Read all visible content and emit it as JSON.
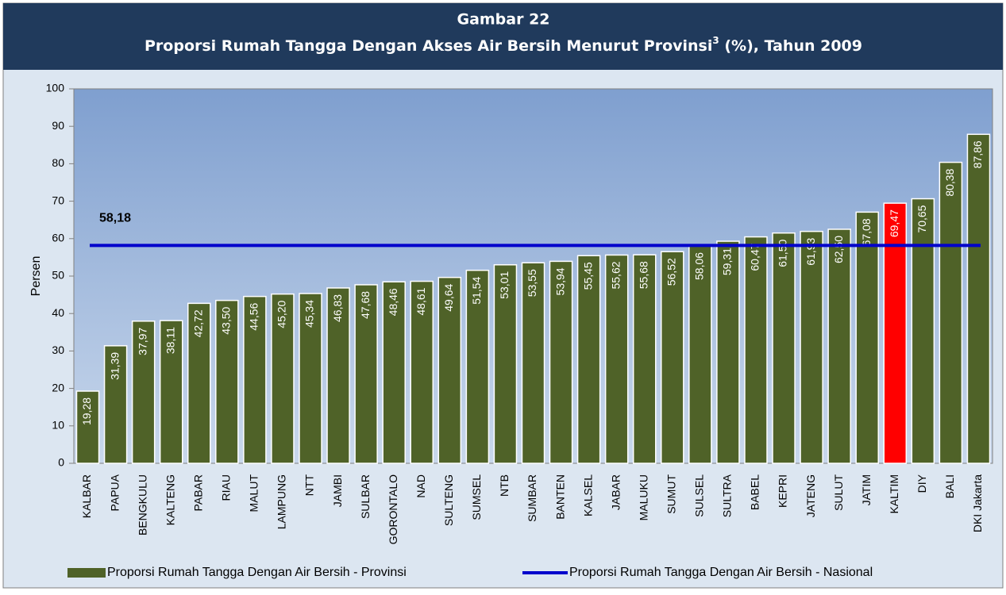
{
  "chart_data": {
    "type": "bar",
    "title_number": "Gambar 22",
    "title": "Proporsi Rumah Tangga Dengan Akses Air Bersih Menurut Provinsi",
    "title_superscript": "3",
    "title_suffix": " (%), Tahun 2009",
    "y_label": "Persen",
    "categories": [
      "KALBAR",
      "PAPUA",
      "BENGKULU",
      "KALTENG",
      "PABAR",
      "RIAU",
      "MALUT",
      "LAMPUNG",
      "NTT",
      "JAMBI",
      "SULBAR",
      "GORONTALO",
      "NAD",
      "SULTENG",
      "SUMSEL",
      "NTB",
      "SUMBAR",
      "BANTEN",
      "KALSEL",
      "JABAR",
      "MALUKU",
      "SUMUT",
      "SULSEL",
      "SULTRA",
      "BABEL",
      "KEPRI",
      "JATENG",
      "SULUT",
      "JATIM",
      "KALTIM",
      "DIY",
      "BALI",
      "DKI Jakarta"
    ],
    "series": [
      {
        "name": "Proporsi Rumah Tangga Dengan Air Bersih - Provinsi",
        "color": "#4f6228",
        "colors": [
          "#4f6228",
          "#4f6228",
          "#4f6228",
          "#4f6228",
          "#4f6228",
          "#4f6228",
          "#4f6228",
          "#4f6228",
          "#4f6228",
          "#4f6228",
          "#4f6228",
          "#4f6228",
          "#4f6228",
          "#4f6228",
          "#4f6228",
          "#4f6228",
          "#4f6228",
          "#4f6228",
          "#4f6228",
          "#4f6228",
          "#4f6228",
          "#4f6228",
          "#4f6228",
          "#4f6228",
          "#4f6228",
          "#4f6228",
          "#4f6228",
          "#4f6228",
          "#4f6228",
          "#ff0000",
          "#4f6228",
          "#4f6228",
          "#4f6228"
        ],
        "values": [
          19.28,
          31.39,
          37.97,
          38.11,
          42.72,
          43.5,
          44.56,
          45.2,
          45.34,
          46.83,
          47.68,
          48.46,
          48.61,
          49.64,
          51.54,
          53.01,
          53.55,
          53.94,
          55.45,
          55.62,
          55.68,
          56.52,
          58.06,
          59.31,
          60.47,
          61.5,
          61.93,
          62.5,
          67.08,
          69.47,
          70.65,
          80.38,
          87.86
        ],
        "value_labels": [
          "19,28",
          "31,39",
          "37,97",
          "38,11",
          "42,72",
          "43,50",
          "44,56",
          "45,20",
          "45,34",
          "46,83",
          "47,68",
          "48,46",
          "48,61",
          "49,64",
          "51,54",
          "53,01",
          "53,55",
          "53,94",
          "55,45",
          "55,62",
          "55,68",
          "56,52",
          "58,06",
          "59,31",
          "60,47",
          "61,50",
          "61,93",
          "62,50",
          "67,08",
          "69,47",
          "70,65",
          "80,38",
          "87,86"
        ]
      },
      {
        "name": "Proporsi Rumah Tangga Dengan Air Bersih - Nasional",
        "type": "line",
        "color": "#0000cc",
        "value": 58.18,
        "value_label": "58,18"
      }
    ],
    "ylim": [
      0,
      100
    ],
    "yticks": [
      0,
      10,
      20,
      30,
      40,
      50,
      60,
      70,
      80,
      90,
      100
    ],
    "grid": false
  }
}
